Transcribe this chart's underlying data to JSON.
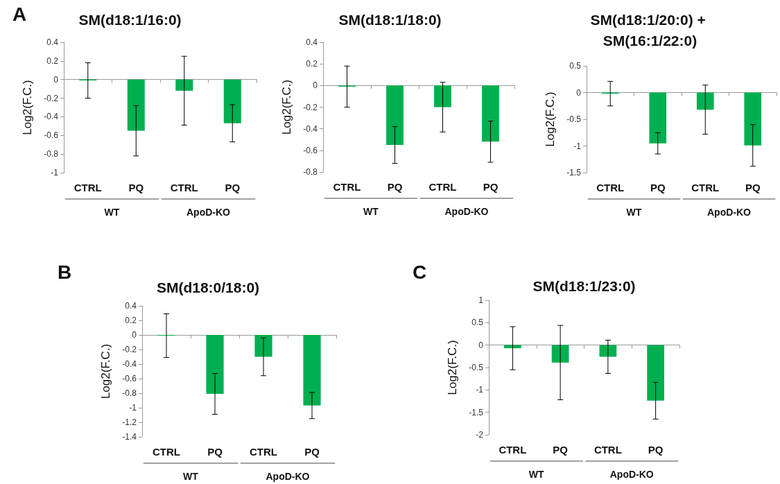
{
  "chart_data": [
    {
      "type": "bar",
      "title": "SM(d18:1/16:0)",
      "ylabel": "Log2(F.C.)",
      "categories": [
        "CTRL",
        "PQ",
        "CTRL",
        "PQ"
      ],
      "color": "#00b050",
      "values": [
        -0.01,
        -0.55,
        -0.12,
        -0.47
      ],
      "errors": [
        0.19,
        0.27,
        0.37,
        0.2
      ],
      "ylim": [
        -1,
        0.4
      ],
      "yticks": [
        -1,
        -0.8,
        -0.6,
        -0.4,
        -0.2,
        0,
        0.2,
        0.4
      ],
      "legend": false,
      "annotations": [
        "A",
        "WT",
        "ApoD-KO"
      ]
    },
    {
      "type": "bar",
      "title": "SM(d18:1/18:0)",
      "ylabel": "Log2(F.C.)",
      "categories": [
        "CTRL",
        "PQ",
        "CTRL",
        "PQ"
      ],
      "color": "#00b050",
      "values": [
        -0.01,
        -0.55,
        -0.2,
        -0.52
      ],
      "errors": [
        0.19,
        0.17,
        0.23,
        0.19
      ],
      "ylim": [
        -0.8,
        0.4
      ],
      "yticks": [
        -0.8,
        -0.6,
        -0.4,
        -0.2,
        0,
        0.2,
        0.4
      ],
      "legend": false,
      "annotations": [
        "WT",
        "ApoD-KO"
      ]
    },
    {
      "type": "bar",
      "title": "SM(d18:1/20:0) + SM(16:1/22:0)",
      "ylabel": "Log2(F.C.)",
      "categories": [
        "CTRL",
        "PQ",
        "CTRL",
        "PQ"
      ],
      "color": "#00b050",
      "values": [
        -0.02,
        -0.95,
        -0.32,
        -0.99
      ],
      "errors": [
        0.23,
        0.2,
        0.46,
        0.39
      ],
      "ylim": [
        -1.5,
        0.5
      ],
      "yticks": [
        -1.5,
        -1,
        -0.5,
        0,
        0.5
      ],
      "legend": false,
      "annotations": [
        "WT",
        "ApoD-KO"
      ]
    },
    {
      "type": "bar",
      "title": "SM(d18:0/18:0)",
      "ylabel": "Log2(F.C.)",
      "categories": [
        "CTRL",
        "PQ",
        "CTRL",
        "PQ"
      ],
      "color": "#00b050",
      "values": [
        -0.01,
        -0.81,
        -0.3,
        -0.97
      ],
      "errors": [
        0.3,
        0.28,
        0.26,
        0.18
      ],
      "ylim": [
        -1.4,
        0.4
      ],
      "yticks": [
        -1.4,
        -1.2,
        -1,
        -0.8,
        -0.6,
        -0.4,
        -0.2,
        0,
        0.2,
        0.4
      ],
      "legend": false,
      "annotations": [
        "B",
        "WT",
        "ApoD-KO"
      ]
    },
    {
      "type": "bar",
      "title": "SM(d18:1/23:0)",
      "ylabel": "Log2(F.C.)",
      "categories": [
        "CTRL",
        "PQ",
        "CTRL",
        "PQ"
      ],
      "color": "#00b050",
      "values": [
        -0.07,
        -0.39,
        -0.26,
        -1.24
      ],
      "errors": [
        0.48,
        0.83,
        0.37,
        0.41
      ],
      "ylim": [
        -2,
        1
      ],
      "yticks": [
        -2,
        -1.5,
        -1,
        -0.5,
        0,
        0.5,
        1
      ],
      "legend": false,
      "annotations": [
        "C",
        "WT",
        "ApoD-KO"
      ]
    }
  ]
}
